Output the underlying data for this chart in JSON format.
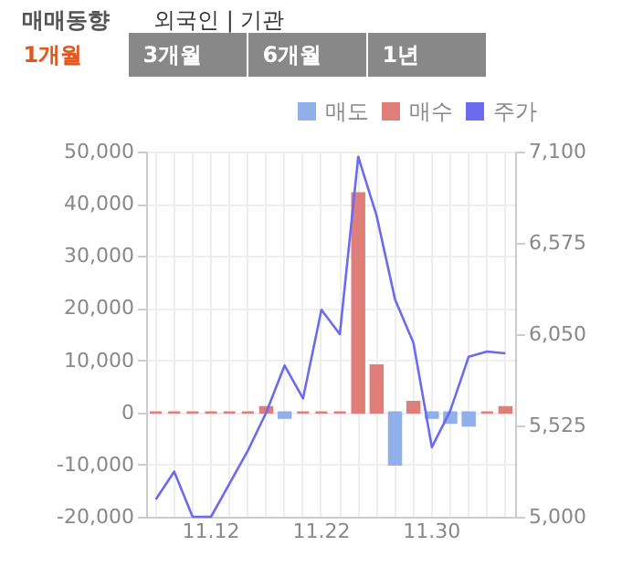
{
  "chart_data": {
    "type": "bar",
    "title": "매매동향",
    "annotations": [
      "외국인 | 기관",
      "1개월",
      "3개월",
      "6개월",
      "1년"
    ],
    "categories": [
      null,
      null,
      null,
      "11.12",
      null,
      null,
      null,
      null,
      null,
      "11.22",
      null,
      null,
      null,
      null,
      null,
      "11.30",
      null,
      null,
      null,
      null
    ],
    "series": [
      {
        "name": "매도",
        "color": "#8fb0e8",
        "values": [
          null,
          null,
          null,
          null,
          null,
          null,
          null,
          -1000,
          null,
          null,
          null,
          null,
          null,
          -10000,
          null,
          -1000,
          -2000,
          -2500,
          null,
          null
        ]
      },
      {
        "name": "매수",
        "color": "#e07f7a",
        "values": [
          0,
          0,
          0,
          0,
          0,
          0,
          1000,
          null,
          0,
          0,
          0,
          42000,
          9000,
          null,
          2000,
          null,
          null,
          null,
          0,
          1000
        ]
      },
      {
        "name": "주가",
        "color": "#6b6bf0",
        "type": "line",
        "axis": "y2",
        "values": [
          5100,
          5260,
          5000,
          5000,
          5190,
          5380,
          5600,
          5870,
          5680,
          6190,
          6050,
          7070,
          6730,
          6250,
          6000,
          5400,
          5610,
          5920,
          5950,
          5940
        ]
      }
    ],
    "ylim": [
      -20000,
      50000
    ],
    "yticks": [
      {
        "value": -20000,
        "label": "-20,000"
      },
      {
        "value": -10000,
        "label": "-10,000"
      },
      0,
      {
        "value": 10000,
        "label": "10,000"
      },
      {
        "value": 20000,
        "label": "20,000"
      },
      {
        "value": 30000,
        "label": "30,000"
      },
      {
        "value": 40000,
        "label": "40,000"
      },
      {
        "value": 50000,
        "label": "50,000"
      }
    ],
    "y2lim": [
      5000,
      7100
    ],
    "y2ticks": [
      {
        "value": 5000,
        "label": "5,000"
      },
      {
        "value": 5525,
        "label": "5,525"
      },
      {
        "value": 6050,
        "label": "6,050"
      },
      {
        "value": 6575,
        "label": "6,575"
      },
      {
        "value": 7100,
        "label": "7,100"
      }
    ],
    "grid": true,
    "legend": "top right"
  }
}
